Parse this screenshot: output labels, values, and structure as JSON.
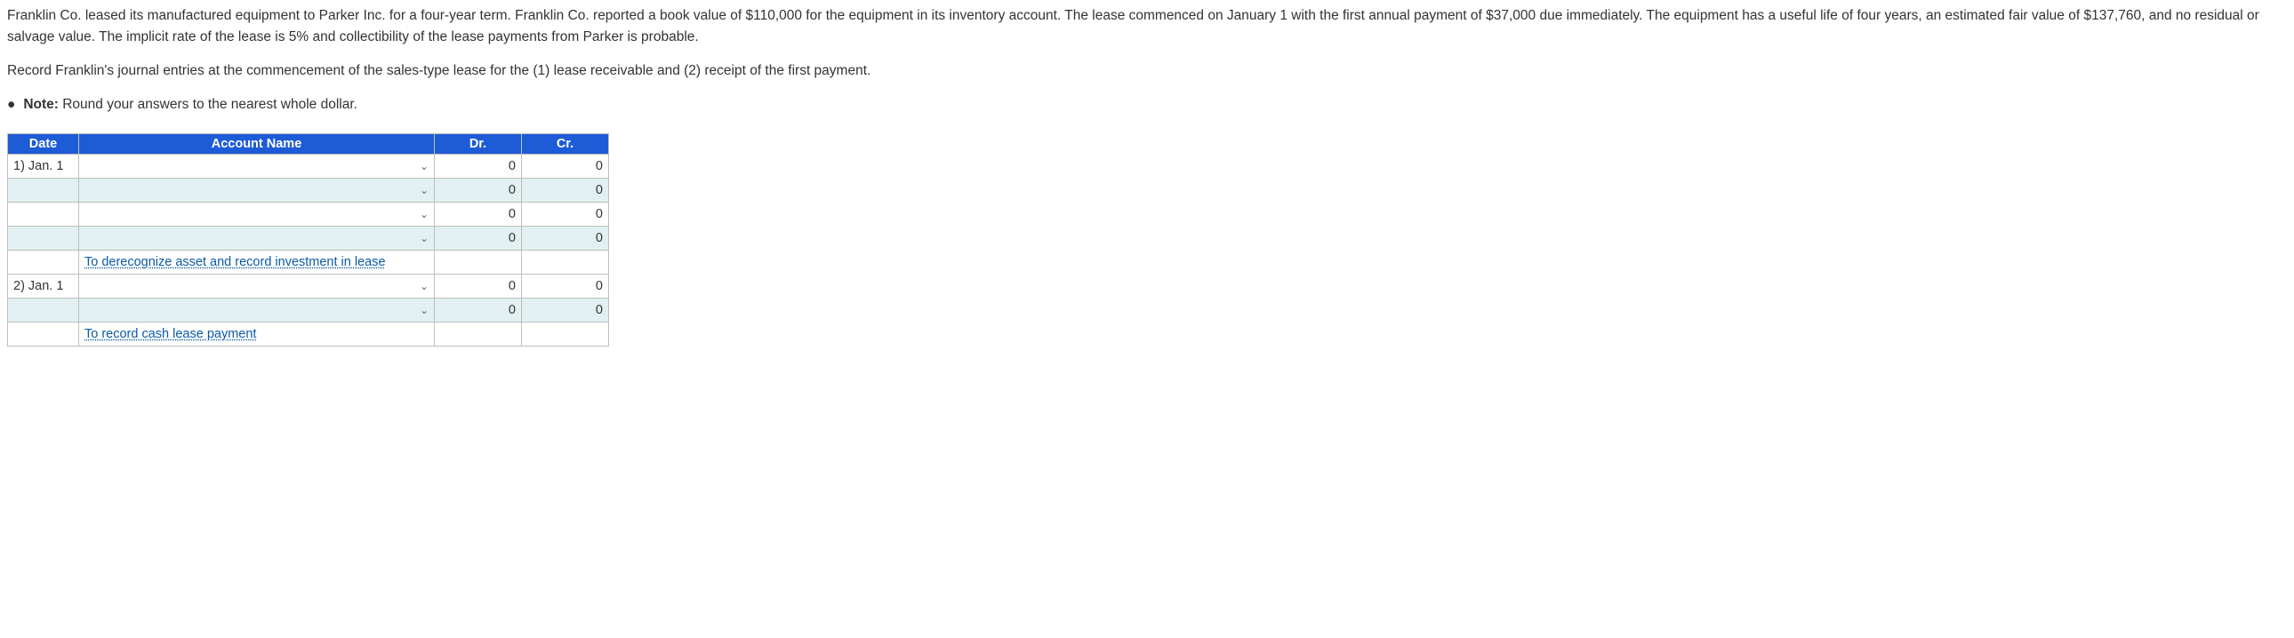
{
  "paragraphs": {
    "p1": "Franklin Co. leased its manufactured equipment to Parker Inc. for a four-year term. Franklin Co. reported a book value of $110,000 for the equipment in its inventory account. The lease commenced on January 1 with the first annual payment of $37,000 due immediately. The equipment has a useful life of four years, an estimated fair value of $137,760, and no residual or salvage value. The implicit rate of the lease is 5% and collectibility of the lease payments from Parker is probable.",
    "p2": "Record Franklin's journal entries at the commencement of the sales-type lease for the (1) lease receivable and (2) receipt of the first payment.",
    "note_bullet": "●",
    "note_label": "Note:",
    "note_text": " Round your answers to the nearest whole dollar."
  },
  "table": {
    "headers": {
      "date": "Date",
      "account": "Account Name",
      "dr": "Dr.",
      "cr": "Cr."
    },
    "rows": [
      {
        "shade": false,
        "date": "1) Jan. 1",
        "dropdown": true,
        "account": "",
        "dr": "0",
        "cr": "0"
      },
      {
        "shade": true,
        "date": "",
        "dropdown": true,
        "account": "",
        "dr": "0",
        "cr": "0"
      },
      {
        "shade": false,
        "date": "",
        "dropdown": true,
        "account": "",
        "dr": "0",
        "cr": "0"
      },
      {
        "shade": true,
        "date": "",
        "dropdown": true,
        "account": "",
        "dr": "0",
        "cr": "0"
      },
      {
        "shade": false,
        "date": "",
        "dropdown": false,
        "memo": "To derecognize asset and record investment in lease",
        "dr": "",
        "cr": ""
      },
      {
        "shade": false,
        "date": "2) Jan. 1",
        "dropdown": true,
        "account": "",
        "dr": "0",
        "cr": "0"
      },
      {
        "shade": true,
        "date": "",
        "dropdown": true,
        "account": "",
        "dr": "0",
        "cr": "0"
      },
      {
        "shade": false,
        "date": "",
        "dropdown": false,
        "memo": "To record cash lease payment",
        "dr": "",
        "cr": ""
      }
    ]
  }
}
